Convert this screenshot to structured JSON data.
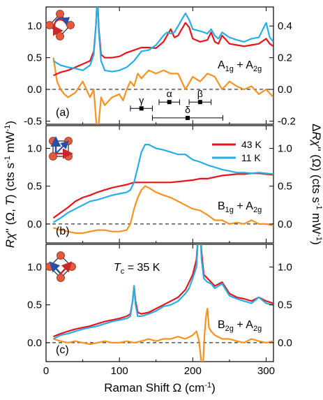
{
  "figure": {
    "xlabel": "Raman Shift Ω (cm⁻¹)",
    "ylabel_left": "Rχ'' (Ω, T) (cts s⁻¹ mW⁻¹)",
    "ylabel_right": "ΔRχ'' (Ω) (cts s⁻¹ mW⁻¹)",
    "legend": [
      {
        "label": "43 K",
        "color": "#e8141c"
      },
      {
        "label": "11 K",
        "color": "#27aee6"
      }
    ],
    "colors": {
      "red": "#e8141c",
      "blue": "#27aee6",
      "orange": "#f59220",
      "inset_red": "#e55a3c",
      "arrow_red": "#c8282a",
      "arrow_blue": "#2a4ea8"
    }
  },
  "chart_data": [
    {
      "type": "line",
      "panel_label": "(a)",
      "symmetry_text": "A1g + A2g",
      "xlim": [
        0,
        310
      ],
      "xticks": [
        0,
        100,
        200,
        300
      ],
      "ylim_left": [
        -0.55,
        1.3
      ],
      "yticks_left": [
        "-0.5",
        "0.0",
        "0.5",
        "1.0"
      ],
      "yticks_left_values": [
        -0.5,
        0.0,
        0.5,
        1.0
      ],
      "ylim_right": [
        -0.22,
        0.52
      ],
      "yticks_right": [
        "-0.2",
        "0.0",
        "0.2",
        "0.4"
      ],
      "yticks_right_values": [
        -0.2,
        0.0,
        0.2,
        0.4
      ],
      "series": [
        {
          "color_key": "red",
          "axis": "left",
          "x": [
            10,
            20,
            30,
            40,
            50,
            60,
            65,
            68,
            70,
            72,
            75,
            80,
            90,
            100,
            110,
            120,
            130,
            140,
            150,
            160,
            165,
            170,
            175,
            180,
            185,
            190,
            195,
            200,
            210,
            220,
            225,
            230,
            235,
            240,
            250,
            260,
            270,
            280,
            290,
            300,
            305,
            310
          ],
          "y": [
            0.22,
            0.27,
            0.3,
            0.35,
            0.4,
            0.45,
            0.6,
            1.0,
            1.5,
            0.95,
            0.55,
            0.5,
            0.5,
            0.52,
            0.58,
            0.62,
            0.66,
            0.66,
            0.65,
            0.75,
            0.85,
            0.95,
            0.82,
            0.85,
            0.95,
            1.05,
            0.98,
            0.8,
            0.75,
            0.78,
            0.9,
            0.75,
            0.72,
            0.85,
            0.72,
            0.7,
            0.68,
            0.7,
            0.72,
            0.8,
            0.72,
            0.68
          ]
        },
        {
          "color_key": "blue",
          "axis": "left",
          "x": [
            10,
            20,
            30,
            40,
            50,
            60,
            65,
            68,
            70,
            72,
            75,
            80,
            90,
            100,
            110,
            120,
            130,
            140,
            150,
            160,
            165,
            170,
            175,
            180,
            185,
            190,
            195,
            200,
            210,
            220,
            225,
            230,
            235,
            240,
            250,
            260,
            270,
            280,
            290,
            300,
            305,
            310
          ],
          "y": [
            0.45,
            0.38,
            0.35,
            0.33,
            0.3,
            0.38,
            0.55,
            1.0,
            1.5,
            0.9,
            0.45,
            0.3,
            0.28,
            0.3,
            0.35,
            0.45,
            0.6,
            0.62,
            0.7,
            0.85,
            0.9,
            0.88,
            0.9,
            1.0,
            1.1,
            1.2,
            1.1,
            0.95,
            0.92,
            0.88,
            0.95,
            0.85,
            0.8,
            0.9,
            0.82,
            0.78,
            0.75,
            0.8,
            0.82,
            1.05,
            0.82,
            0.75
          ]
        },
        {
          "color_key": "orange",
          "axis": "right",
          "x": [
            10,
            15,
            20,
            25,
            30,
            40,
            50,
            55,
            60,
            65,
            70,
            75,
            80,
            90,
            100,
            105,
            110,
            115,
            120,
            125,
            130,
            140,
            150,
            160,
            170,
            180,
            190,
            200,
            210,
            220,
            230,
            240,
            250,
            260,
            270,
            280,
            290,
            300,
            310
          ],
          "y": [
            0.2,
            0.05,
            0.0,
            -0.03,
            -0.05,
            -0.02,
            0.05,
            0.0,
            -0.05,
            0.0,
            -0.3,
            -0.05,
            -0.1,
            -0.05,
            -0.03,
            -0.07,
            0.0,
            0.05,
            0.02,
            0.1,
            0.07,
            0.12,
            0.1,
            0.12,
            0.1,
            0.1,
            0.0,
            0.08,
            0.05,
            0.1,
            0.08,
            0.0,
            0.05,
            0.02,
            0.0,
            0.02,
            -0.03,
            0.0,
            -0.05
          ]
        }
      ],
      "annotations": [
        {
          "label": "γ",
          "x": 130,
          "xerr": 15,
          "y": -0.3
        },
        {
          "label": "α",
          "x": 168,
          "xerr": 14,
          "y": -0.2
        },
        {
          "label": "β",
          "x": 210,
          "xerr": 15,
          "y": -0.2
        },
        {
          "label": "δ",
          "x": 193,
          "xerr": 48,
          "y": -0.45
        }
      ]
    },
    {
      "type": "line",
      "panel_label": "(b)",
      "symmetry_text": "B1g + A2g",
      "xlim": [
        0,
        310
      ],
      "xticks": [
        0,
        100,
        200,
        300
      ],
      "ylim_left": [
        -0.25,
        1.3
      ],
      "yticks_left": [
        "0.0",
        "0.5",
        "1.0"
      ],
      "yticks_left_values": [
        0.0,
        0.5,
        1.0
      ],
      "ylim_right": [
        -0.25,
        1.3
      ],
      "yticks_right": [
        "0.0",
        "0.5",
        "1.0"
      ],
      "yticks_right_values": [
        0.0,
        0.5,
        1.0
      ],
      "series": [
        {
          "color_key": "red",
          "axis": "left",
          "x": [
            10,
            20,
            30,
            40,
            50,
            60,
            70,
            80,
            90,
            100,
            110,
            120,
            130,
            140,
            150,
            160,
            170,
            180,
            190,
            200,
            210,
            220,
            230,
            240,
            250,
            260,
            270,
            280,
            290,
            300,
            310
          ],
          "y": [
            0.08,
            0.15,
            0.22,
            0.3,
            0.35,
            0.38,
            0.42,
            0.45,
            0.48,
            0.5,
            0.52,
            0.55,
            0.55,
            0.55,
            0.55,
            0.55,
            0.55,
            0.56,
            0.57,
            0.58,
            0.6,
            0.6,
            0.62,
            0.64,
            0.65,
            0.66,
            0.66,
            0.67,
            0.67,
            0.66,
            0.65
          ]
        },
        {
          "color_key": "blue",
          "axis": "left",
          "x": [
            10,
            20,
            30,
            40,
            50,
            60,
            70,
            80,
            90,
            100,
            110,
            115,
            120,
            125,
            130,
            135,
            140,
            150,
            160,
            170,
            180,
            190,
            200,
            210,
            220,
            230,
            240,
            250,
            260,
            270,
            280,
            290,
            300,
            310
          ],
          "y": [
            0.02,
            0.08,
            0.15,
            0.2,
            0.25,
            0.3,
            0.32,
            0.35,
            0.38,
            0.4,
            0.42,
            0.45,
            0.55,
            0.75,
            0.95,
            1.05,
            1.05,
            1.0,
            0.98,
            0.95,
            0.92,
            0.92,
            0.85,
            0.82,
            0.78,
            0.75,
            0.72,
            0.7,
            0.68,
            0.68,
            0.67,
            0.68,
            0.67,
            0.66
          ]
        },
        {
          "color_key": "orange",
          "axis": "right",
          "x": [
            10,
            20,
            30,
            40,
            50,
            60,
            70,
            80,
            90,
            100,
            110,
            115,
            120,
            125,
            130,
            135,
            140,
            150,
            160,
            170,
            180,
            190,
            200,
            210,
            220,
            230,
            240,
            250,
            260,
            270,
            280,
            290,
            300,
            310
          ],
          "y": [
            -0.05,
            -0.08,
            -0.1,
            -0.12,
            -0.12,
            -0.1,
            -0.08,
            -0.08,
            -0.1,
            -0.1,
            -0.08,
            0.0,
            0.2,
            0.35,
            0.45,
            0.5,
            0.48,
            0.42,
            0.38,
            0.35,
            0.3,
            0.25,
            0.2,
            0.18,
            0.12,
            0.05,
            0.05,
            0.0,
            0.02,
            0.0,
            0.05,
            0.0,
            0.0,
            -0.02
          ]
        }
      ]
    },
    {
      "type": "line",
      "panel_label": "(c)",
      "symmetry_text": "B2g + A2g",
      "tc_text": "Tc = 35 K",
      "xlim": [
        0,
        310
      ],
      "xticks": [
        0,
        100,
        200,
        300
      ],
      "xticklabels": [
        "0",
        "100",
        "200",
        "300"
      ],
      "ylim_left": [
        -0.25,
        1.3
      ],
      "yticks_left": [
        "0.0",
        "0.5",
        "1.0"
      ],
      "yticks_left_values": [
        0.0,
        0.5,
        1.0
      ],
      "ylim_right": [
        -0.25,
        1.3
      ],
      "yticks_right": [
        "0.0",
        "0.5",
        "1.0"
      ],
      "yticks_right_values": [
        0.0,
        0.5,
        1.0
      ],
      "series": [
        {
          "color_key": "red",
          "axis": "left",
          "x": [
            10,
            20,
            30,
            40,
            50,
            60,
            70,
            80,
            90,
            100,
            110,
            115,
            118,
            120,
            122,
            125,
            130,
            140,
            150,
            160,
            170,
            180,
            190,
            195,
            200,
            205,
            208,
            210,
            212,
            215,
            220,
            225,
            230,
            240,
            250,
            260,
            270,
            280,
            290,
            300,
            310
          ],
          "y": [
            0.08,
            0.12,
            0.15,
            0.18,
            0.2,
            0.22,
            0.25,
            0.28,
            0.3,
            0.32,
            0.35,
            0.38,
            0.55,
            0.75,
            0.55,
            0.4,
            0.38,
            0.4,
            0.45,
            0.5,
            0.55,
            0.6,
            0.7,
            0.8,
            0.9,
            1.1,
            1.5,
            1.5,
            1.2,
            0.9,
            0.85,
            0.8,
            0.75,
            0.8,
            0.65,
            0.6,
            0.58,
            0.55,
            0.6,
            0.55,
            0.52
          ]
        },
        {
          "color_key": "blue",
          "axis": "left",
          "x": [
            10,
            20,
            30,
            40,
            50,
            60,
            70,
            80,
            90,
            100,
            110,
            115,
            118,
            120,
            122,
            125,
            130,
            140,
            150,
            160,
            170,
            180,
            190,
            195,
            200,
            205,
            208,
            210,
            212,
            215,
            220,
            225,
            230,
            240,
            250,
            260,
            270,
            280,
            290,
            300,
            310
          ],
          "y": [
            0.05,
            0.1,
            0.12,
            0.15,
            0.18,
            0.2,
            0.22,
            0.25,
            0.28,
            0.3,
            0.32,
            0.35,
            0.55,
            0.75,
            0.5,
            0.35,
            0.35,
            0.38,
            0.42,
            0.48,
            0.5,
            0.55,
            0.65,
            0.72,
            0.85,
            1.0,
            1.5,
            1.5,
            1.1,
            0.85,
            0.8,
            0.78,
            0.72,
            0.78,
            0.62,
            0.58,
            0.55,
            0.52,
            0.6,
            0.52,
            0.5
          ]
        },
        {
          "color_key": "orange",
          "axis": "right",
          "x": [
            10,
            20,
            30,
            40,
            50,
            60,
            70,
            80,
            90,
            100,
            110,
            120,
            130,
            140,
            150,
            160,
            170,
            180,
            190,
            200,
            205,
            208,
            210,
            212,
            214,
            216,
            218,
            220,
            222,
            225,
            230,
            240,
            250,
            260,
            270,
            280,
            290,
            300,
            310
          ],
          "y": [
            0.05,
            0.02,
            0.0,
            0.02,
            0.0,
            -0.02,
            0.0,
            0.02,
            0.0,
            0.0,
            0.02,
            0.0,
            0.02,
            0.05,
            0.02,
            0.05,
            0.05,
            0.08,
            0.05,
            0.1,
            0.15,
            0.05,
            -0.1,
            -0.3,
            -0.3,
            0.1,
            0.35,
            0.45,
            0.2,
            0.15,
            0.1,
            0.05,
            0.05,
            0.02,
            0.0,
            0.05,
            0.02,
            0.0,
            0.02
          ]
        }
      ]
    }
  ]
}
